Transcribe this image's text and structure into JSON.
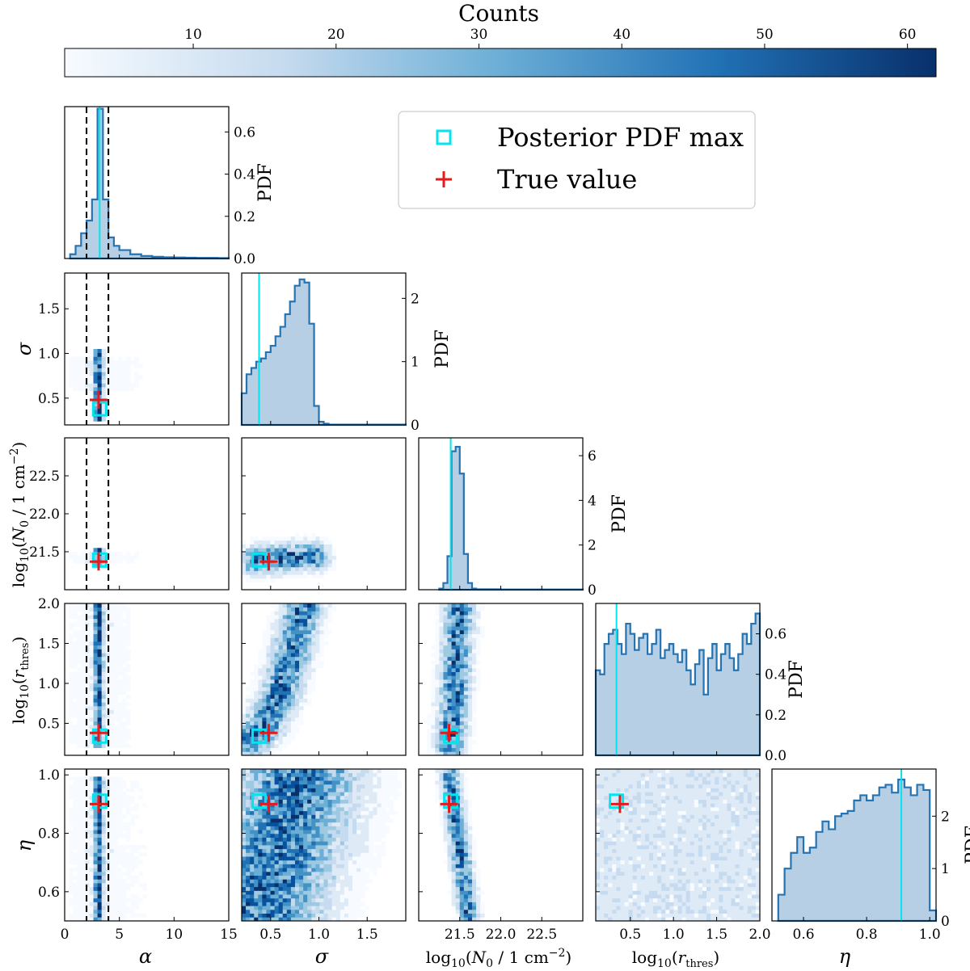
{
  "colorbar": {
    "title": "Counts",
    "ticks": [
      "10",
      "20",
      "30",
      "40",
      "50",
      "60"
    ],
    "tick_values": [
      10,
      20,
      30,
      40,
      50,
      60
    ],
    "range": [
      1,
      62
    ],
    "colors": [
      "#f7fbff",
      "#c6dbef",
      "#6baed6",
      "#2171b5",
      "#08306b"
    ]
  },
  "legend": {
    "items": [
      {
        "label": "Posterior PDF max",
        "marker": "cyan-square",
        "color": "#00e5ee"
      },
      {
        "label": "True value",
        "marker": "red-plus",
        "color": "#e41a1c"
      }
    ]
  },
  "colors": {
    "hist_fill": "#b7cfe4",
    "hist_line": "#2673b2",
    "max_line": "#00e5ee",
    "true_marker": "#e41a1c",
    "prior_line": "#000000"
  },
  "labels": {
    "alpha": "α",
    "sigma": "σ",
    "eta": "η",
    "logN0": "log10(N0 / 1 cm−2)",
    "logr": "log10(rthres)",
    "pdf": "PDF"
  },
  "chart_data": {
    "type": "corner",
    "parameters": [
      {
        "name": "α",
        "range": [
          0,
          15
        ],
        "ticks": [
          "0",
          "5",
          "10",
          "15"
        ],
        "tick_values": [
          0,
          5,
          10,
          15
        ],
        "true": 3.1,
        "max": 3.2,
        "prior_bounds": [
          2,
          4
        ]
      },
      {
        "name": "σ",
        "range": [
          0.2,
          1.9
        ],
        "ticks": [
          "0.5",
          "1.0",
          "1.5"
        ],
        "tick_values": [
          0.5,
          1.0,
          1.5
        ],
        "true": 0.48,
        "max": 0.38
      },
      {
        "name": "log10(N0 / 1 cm−2)",
        "range": [
          21.0,
          23.0
        ],
        "ticks": [
          "21.5",
          "22.0",
          "22.5"
        ],
        "tick_values": [
          21.5,
          22.0,
          22.5
        ],
        "true": 21.37,
        "max": 21.39
      },
      {
        "name": "log10(rthres)",
        "range": [
          0.1,
          2.0
        ],
        "ticks": [
          "0.5",
          "1.0",
          "1.5",
          "2.0"
        ],
        "tick_values": [
          0.5,
          1.0,
          1.5,
          2.0
        ],
        "true": 0.38,
        "max": 0.34
      },
      {
        "name": "η",
        "range": [
          0.5,
          1.02
        ],
        "ticks": [
          "0.6",
          "0.8",
          "1.0"
        ],
        "tick_values": [
          0.6,
          0.8,
          1.0
        ],
        "true": 0.9,
        "max": 0.91
      }
    ],
    "diag_pdf_ticks": [
      {
        "values": [
          0.0,
          0.2,
          0.4,
          0.6
        ],
        "labels": [
          "0.0",
          "0.2",
          "0.4",
          "0.6"
        ],
        "ylim": [
          0,
          0.72
        ]
      },
      {
        "values": [
          0,
          1,
          2
        ],
        "labels": [
          "0",
          "1",
          "2"
        ],
        "ylim": [
          0,
          2.4
        ]
      },
      {
        "values": [
          0,
          2,
          4,
          6
        ],
        "labels": [
          "0",
          "2",
          "4",
          "6"
        ],
        "ylim": [
          0,
          6.8
        ]
      },
      {
        "values": [
          0.0,
          0.2,
          0.4,
          0.6
        ],
        "labels": [
          "0.0",
          "0.2",
          "0.4",
          "0.6"
        ],
        "ylim": [
          0,
          0.75
        ]
      },
      {
        "values": [
          0,
          1,
          2
        ],
        "labels": [
          "0",
          "1",
          "2"
        ],
        "ylim": [
          0,
          2.9
        ]
      }
    ],
    "histograms": [
      {
        "edges": [
          0.5,
          1,
          1.5,
          2,
          2.5,
          3,
          3.5,
          4,
          4.5,
          5,
          6,
          7,
          8,
          9,
          10,
          11,
          12,
          13,
          14,
          15
        ],
        "pdf": [
          0.02,
          0.06,
          0.12,
          0.18,
          0.28,
          0.71,
          0.28,
          0.1,
          0.06,
          0.04,
          0.02,
          0.012,
          0.008,
          0.006,
          0.005,
          0.004,
          0.003,
          0.003,
          0.002
        ]
      },
      {
        "edges": [
          0.2,
          0.25,
          0.3,
          0.35,
          0.4,
          0.45,
          0.5,
          0.55,
          0.6,
          0.65,
          0.7,
          0.75,
          0.8,
          0.85,
          0.9,
          0.95,
          1.0,
          1.05,
          1.1,
          1.9
        ],
        "pdf": [
          0.5,
          0.8,
          0.9,
          1.0,
          1.05,
          1.15,
          1.25,
          1.4,
          1.55,
          1.75,
          1.95,
          2.2,
          2.3,
          2.25,
          1.6,
          0.3,
          0.05,
          0.02,
          0.005
        ]
      },
      {
        "edges": [
          21.25,
          21.3,
          21.35,
          21.4,
          21.45,
          21.5,
          21.55,
          21.6,
          21.65,
          21.7,
          22.0,
          23.0
        ],
        "pdf": [
          0.05,
          0.3,
          1.5,
          6.2,
          6.4,
          5.2,
          1.6,
          0.3,
          0.05,
          0.02,
          0.01
        ]
      },
      {
        "edges": [
          0.1,
          0.15,
          0.2,
          0.25,
          0.3,
          0.35,
          0.4,
          0.45,
          0.5,
          0.55,
          0.6,
          0.65,
          0.7,
          0.75,
          0.8,
          0.85,
          0.9,
          0.95,
          1.0,
          1.05,
          1.1,
          1.15,
          1.2,
          1.25,
          1.3,
          1.35,
          1.4,
          1.45,
          1.5,
          1.55,
          1.6,
          1.65,
          1.7,
          1.75,
          1.8,
          1.85,
          1.9,
          1.95,
          2.0
        ],
        "pdf": [
          0.42,
          0.4,
          0.55,
          0.6,
          0.62,
          0.55,
          0.5,
          0.65,
          0.6,
          0.52,
          0.58,
          0.6,
          0.5,
          0.55,
          0.62,
          0.48,
          0.52,
          0.55,
          0.5,
          0.46,
          0.52,
          0.42,
          0.35,
          0.45,
          0.52,
          0.3,
          0.48,
          0.55,
          0.42,
          0.5,
          0.55,
          0.48,
          0.42,
          0.5,
          0.6,
          0.55,
          0.65,
          0.7
        ]
      },
      {
        "edges": [
          0.52,
          0.54,
          0.56,
          0.58,
          0.6,
          0.62,
          0.64,
          0.66,
          0.68,
          0.7,
          0.72,
          0.74,
          0.76,
          0.78,
          0.8,
          0.82,
          0.84,
          0.86,
          0.88,
          0.9,
          0.92,
          0.94,
          0.96,
          0.98,
          1.0,
          1.02
        ],
        "pdf": [
          0.5,
          1.0,
          1.3,
          1.6,
          1.3,
          1.4,
          1.7,
          1.9,
          1.75,
          2.0,
          2.05,
          2.1,
          2.3,
          2.4,
          2.3,
          2.4,
          2.55,
          2.6,
          2.45,
          2.7,
          2.55,
          2.4,
          2.6,
          2.5,
          0.2
        ]
      }
    ],
    "density_2d": [
      {
        "panel": "σ vs α",
        "mode": "x-column",
        "center": 3.1,
        "width": 0.6,
        "yrange": [
          0.25,
          1.05
        ],
        "halo": {
          "x": [
            0.5,
            9
          ],
          "y": [
            0.6,
            0.95
          ]
        }
      },
      {
        "panel": "log10(N0) vs α",
        "mode": "x-column",
        "center": 3.1,
        "width": 0.6,
        "yrange": [
          21.3,
          21.55
        ],
        "halo": {
          "x": [
            0.5,
            10
          ],
          "y": [
            21.35,
            21.5
          ]
        }
      },
      {
        "panel": "log10(rthres) vs α",
        "mode": "x-column",
        "center": 3.1,
        "width": 0.6,
        "yrange": [
          0.2,
          2.0
        ],
        "halo": {
          "x": [
            0.5,
            6
          ],
          "y": [
            0.2,
            2.0
          ]
        }
      },
      {
        "panel": "η vs α",
        "mode": "x-column",
        "center": 3.1,
        "width": 0.6,
        "yrange": [
          0.5,
          1.0
        ],
        "halo": {
          "x": [
            0.5,
            8
          ],
          "y": [
            0.5,
            1.0
          ]
        }
      },
      {
        "panel": "log10(N0) vs σ",
        "mode": "band",
        "points": [
          [
            0.35,
            21.38
          ],
          [
            0.6,
            21.42
          ],
          [
            0.85,
            21.44
          ],
          [
            0.95,
            21.44
          ]
        ],
        "spread": 0.06
      },
      {
        "panel": "log10(rthres) vs σ",
        "mode": "band",
        "points": [
          [
            0.3,
            0.3
          ],
          [
            0.45,
            0.5
          ],
          [
            0.6,
            0.9
          ],
          [
            0.7,
            1.3
          ],
          [
            0.78,
            1.7
          ],
          [
            0.85,
            2.0
          ]
        ],
        "spread": 0.08
      },
      {
        "panel": "η vs σ",
        "mode": "band",
        "points": [
          [
            0.35,
            0.5
          ],
          [
            0.6,
            0.75
          ],
          [
            0.8,
            1.0
          ]
        ],
        "spread": 0.25
      },
      {
        "panel": "log10(rthres) vs log10(N0)",
        "mode": "band",
        "points": [
          [
            21.38,
            0.2
          ],
          [
            21.45,
            1.0
          ],
          [
            21.5,
            2.0
          ]
        ],
        "spread": 0.06
      },
      {
        "panel": "η vs log10(N0)",
        "mode": "band",
        "points": [
          [
            21.38,
            1.0
          ],
          [
            21.5,
            0.75
          ],
          [
            21.62,
            0.5
          ]
        ],
        "spread": 0.04
      },
      {
        "panel": "η vs log10(rthres)",
        "mode": "uniform",
        "xrange": [
          0.1,
          2.0
        ],
        "yrange": [
          0.5,
          1.0
        ]
      }
    ]
  }
}
